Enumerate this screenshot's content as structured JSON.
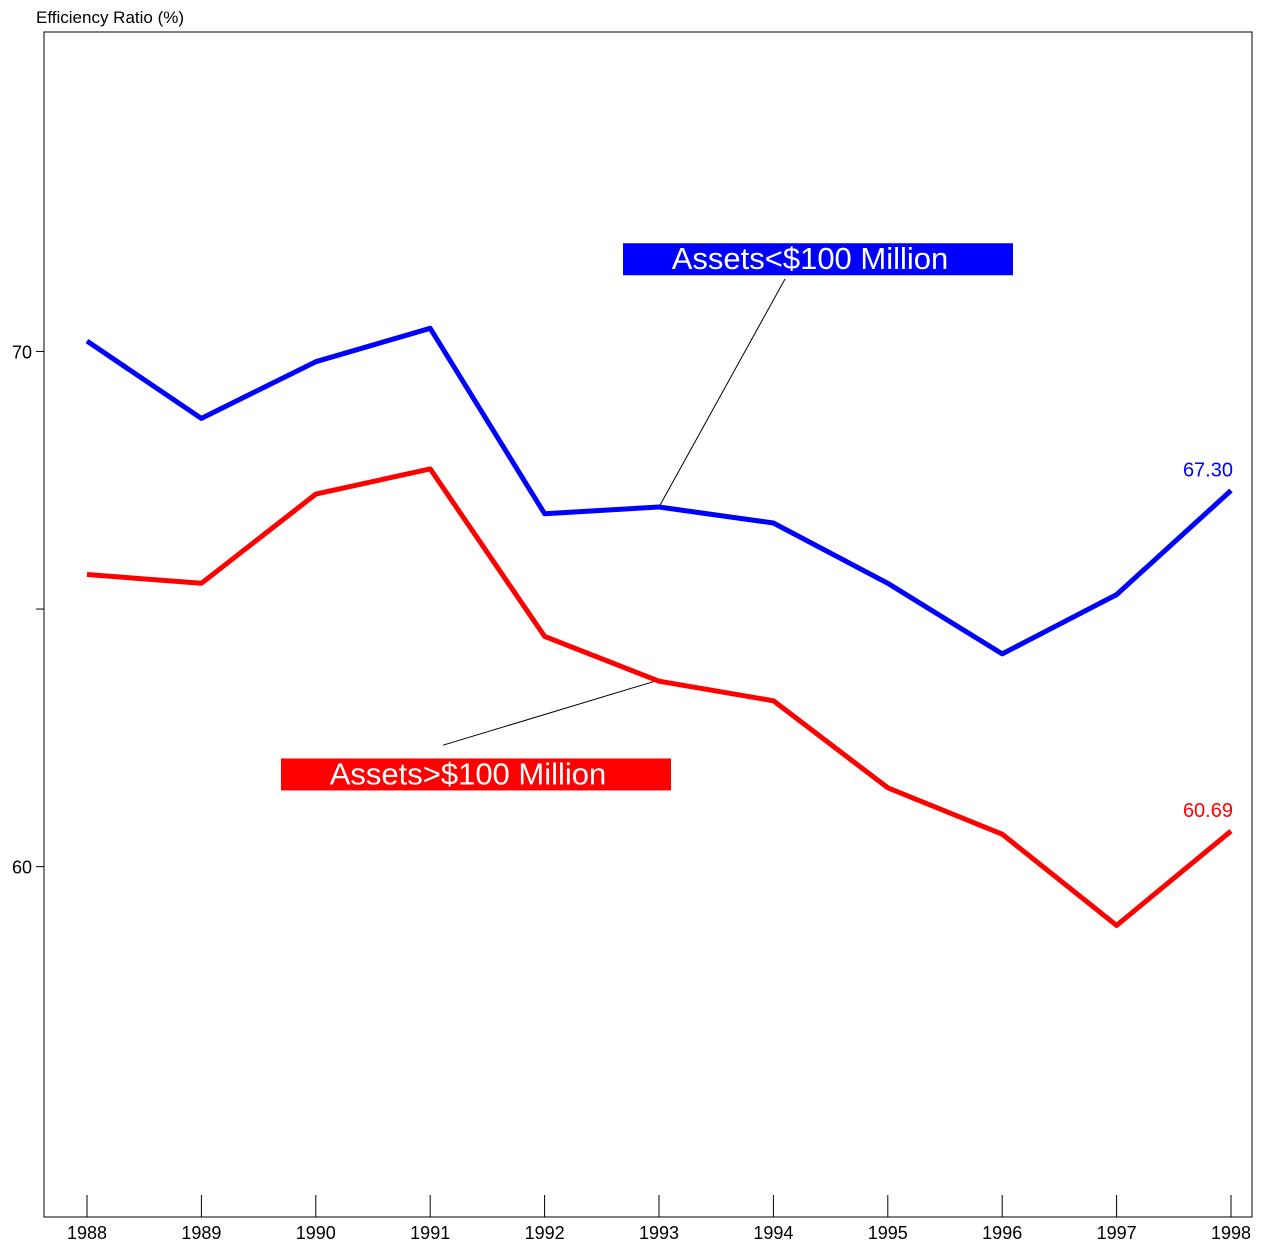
{
  "chart_data": {
    "type": "line",
    "ylabel": "Efficiency Ratio (%)",
    "xlabel": "",
    "x": [
      "1988",
      "1989",
      "1990",
      "1991",
      "1992",
      "1993",
      "1994",
      "1995",
      "1996",
      "1997",
      "1998"
    ],
    "ylim": [
      53.2,
      76.2
    ],
    "yticks": [
      60,
      65,
      70
    ],
    "ytick_labels": [
      "60",
      "",
      "70"
    ],
    "grid": false,
    "series": [
      {
        "name": "Assets<$100 Million",
        "color": "#0000ff",
        "values": [
          70.2,
          68.7,
          69.8,
          70.45,
          66.85,
          66.98,
          66.67,
          65.5,
          64.13,
          65.28,
          67.3
        ],
        "end_label": "67.30"
      },
      {
        "name": "Assets>$100 Million",
        "color": "#ff0000",
        "values": [
          65.67,
          65.5,
          67.23,
          67.72,
          64.47,
          63.6,
          63.22,
          61.53,
          60.63,
          58.86,
          60.69
        ],
        "end_label": "60.69"
      }
    ],
    "annotations": [
      {
        "text": "Assets<$100 Million",
        "series": 0,
        "point_index": 5,
        "fill": "#0000ff",
        "text_color": "#ffffff"
      },
      {
        "text": "Assets>$100 Million",
        "series": 1,
        "point_index": 5,
        "fill": "#ff0000",
        "text_color": "#ffffff"
      }
    ]
  }
}
